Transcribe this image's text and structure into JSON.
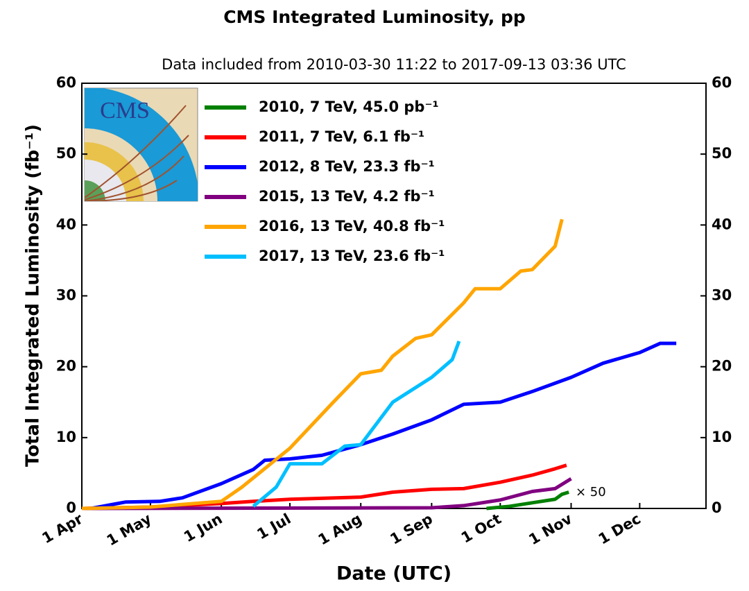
{
  "chart_data": {
    "type": "line",
    "title": "CMS Integrated Luminosity, pp",
    "subtitle": "Data included from 2010-03-30 11:22 to 2017-09-13 03:36 UTC",
    "x_label": "Date (UTC)",
    "y_label": "Total Integrated Luminosity (fb⁻¹)",
    "annotation": "× 50",
    "xlim": [
      "1 Apr",
      "30 Dec"
    ],
    "xticks": [
      "1 Apr",
      "1 May",
      "1 Jun",
      "1 Jul",
      "1 Aug",
      "1 Sep",
      "1 Oct",
      "1 Nov",
      "1 Dec"
    ],
    "ylim": [
      0,
      60
    ],
    "yticks": [
      0,
      10,
      20,
      30,
      40,
      50,
      60
    ],
    "y2lim": [
      0,
      60
    ],
    "y2ticks": [
      0,
      10,
      20,
      30,
      40,
      50,
      60
    ],
    "legend": "upper left",
    "series": [
      {
        "name": "2010, 7 TeV, 45.0 pb⁻¹",
        "color": "#008000",
        "x": [
          "25 Sep",
          "5 Oct",
          "15 Oct",
          "25 Oct",
          "28 Oct",
          "31 Oct"
        ],
        "values": [
          0,
          0.3,
          0.8,
          1.3,
          2.0,
          2.3
        ]
      },
      {
        "name": "2011, 7 TeV, 6.1 fb⁻¹",
        "color": "#ff0000",
        "x": [
          "1 Apr",
          "15 Apr",
          "1 May",
          "1 Jun",
          "15 Jun",
          "1 Jul",
          "1 Aug",
          "15 Aug",
          "1 Sep",
          "15 Sep",
          "1 Oct",
          "15 Oct",
          "25 Oct",
          "30 Oct"
        ],
        "values": [
          0,
          0.1,
          0.2,
          0.7,
          1.0,
          1.3,
          1.6,
          2.3,
          2.7,
          2.8,
          3.7,
          4.7,
          5.6,
          6.1
        ]
      },
      {
        "name": "2012, 8 TeV, 23.3 fb⁻¹",
        "color": "#0000ff",
        "x": [
          "5 Apr",
          "15 Apr",
          "20 Apr",
          "5 May",
          "15 May",
          "1 Jun",
          "15 Jun",
          "20 Jun",
          "1 Jul",
          "15 Jul",
          "1 Aug",
          "15 Aug",
          "1 Sep",
          "15 Sep",
          "1 Oct",
          "15 Oct",
          "1 Nov",
          "15 Nov",
          "1 Dec",
          "10 Dec",
          "17 Dec"
        ],
        "values": [
          0,
          0.6,
          0.9,
          1.0,
          1.5,
          3.5,
          5.5,
          6.8,
          7.0,
          7.5,
          9.0,
          10.5,
          12.5,
          14.7,
          15.0,
          16.5,
          18.5,
          20.5,
          22.0,
          23.3,
          23.3
        ]
      },
      {
        "name": "2015, 13 TeV, 4.2 fb⁻¹",
        "color": "#800080",
        "x": [
          "1 Apr",
          "1 Sep",
          "15 Sep",
          "1 Oct",
          "15 Oct",
          "25 Oct",
          "1 Nov"
        ],
        "values": [
          0,
          0.1,
          0.4,
          1.2,
          2.4,
          2.8,
          4.2
        ]
      },
      {
        "name": "2016, 13 TeV, 40.8 fb⁻¹",
        "color": "#ffa500",
        "x": [
          "1 Apr",
          "1 May",
          "20 May",
          "1 Jun",
          "10 Jun",
          "1 Jul",
          "20 Jul",
          "1 Aug",
          "10 Aug",
          "15 Aug",
          "25 Aug",
          "1 Sep",
          "15 Sep",
          "20 Sep",
          "1 Oct",
          "10 Oct",
          "15 Oct",
          "25 Oct",
          "28 Oct"
        ],
        "values": [
          0,
          0.2,
          0.7,
          1.0,
          3.0,
          8.5,
          15,
          19,
          19.5,
          21.5,
          24,
          24.5,
          29,
          31,
          31,
          33.5,
          33.7,
          37,
          40.8
        ]
      },
      {
        "name": "2017, 13 TeV, 23.6 fb⁻¹",
        "color": "#00bfff",
        "x": [
          "15 Jun",
          "25 Jun",
          "1 Jul",
          "15 Jul",
          "25 Jul",
          "1 Aug",
          "15 Aug",
          "1 Sep",
          "10 Sep",
          "13 Sep"
        ],
        "values": [
          0.3,
          3,
          6.3,
          6.3,
          8.8,
          9,
          15,
          18.5,
          21,
          23.6
        ]
      }
    ]
  }
}
